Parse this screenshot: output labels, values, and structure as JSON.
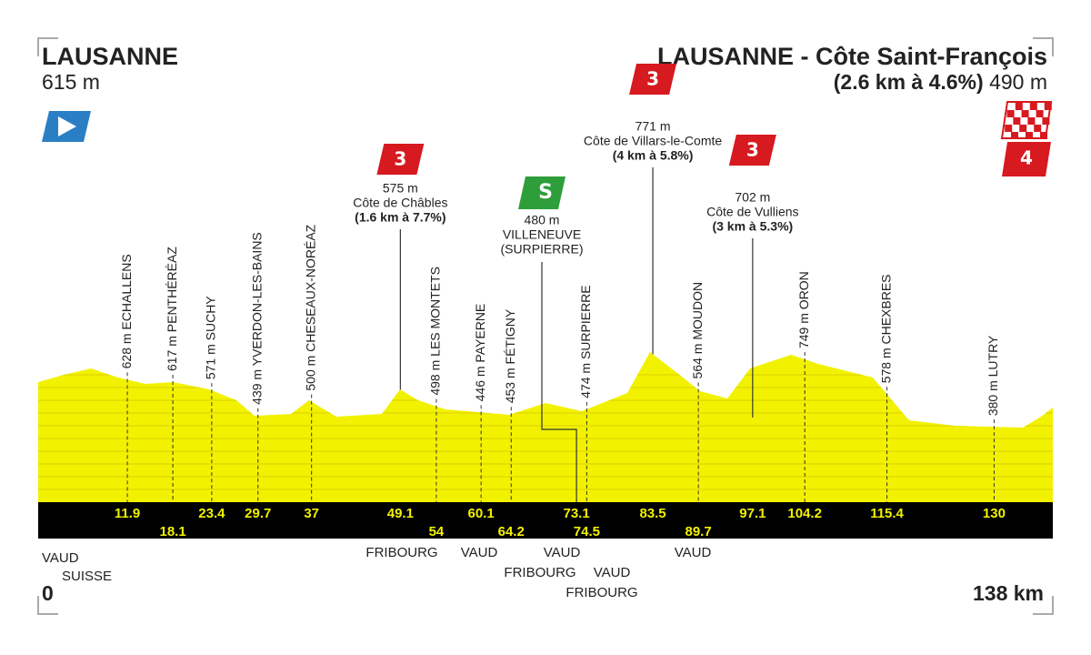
{
  "start": {
    "name": "LAUSANNE",
    "altitude": "615 m",
    "km": 0,
    "regions": [
      "VAUD",
      "SUISSE"
    ]
  },
  "finish": {
    "name": "LAUSANNE - Côte Saint-François",
    "detail": "(2.6 km à 4.6%)",
    "altitude": "490 m",
    "km": 138,
    "unit": "km",
    "category": "4"
  },
  "waypoints": [
    {
      "label": "628 m ECHALLENS",
      "km": 11.9
    },
    {
      "label": "617 m PENTHÉRÉAZ",
      "km": 18.1
    },
    {
      "label": "571 m SUCHY",
      "km": 23.4
    },
    {
      "label": "439 m YVERDON-LES-BAINS",
      "km": 29.7
    },
    {
      "label": "500 m CHESEAUX-NORÉAZ",
      "km": 37
    },
    {
      "label": "498 m LES MONTETS",
      "km": 54
    },
    {
      "label": "446 m PAYERNE",
      "km": 60.1
    },
    {
      "label": "453 m FÉTIGNY",
      "km": 64.2
    },
    {
      "label": "474 m SURPIERRE",
      "km": 74.5
    },
    {
      "label": "564 m MOUDON",
      "km": 89.7
    },
    {
      "label": "749 m ORON",
      "km": 104.2
    },
    {
      "label": "578 m CHEXBRES",
      "km": 115.4
    },
    {
      "label": "380 m LUTRY",
      "km": 130
    }
  ],
  "climbs": [
    {
      "category": "3",
      "altitude": "575 m",
      "name": "Côte de Châbles",
      "detail": "(1.6 km à 7.7%)",
      "km": 49.1
    },
    {
      "category": "3",
      "altitude": "771 m",
      "name": "Côte de Villars-le-Comte",
      "detail": "(4 km à 5.8%)",
      "km": 83.5
    },
    {
      "category": "3",
      "altitude": "702 m",
      "name": "Côte de Vulliens",
      "detail": "(3 km à 5.3%)",
      "km": 97.1
    }
  ],
  "sprint": {
    "badge": "S",
    "altitude": "480 m",
    "name": "VILLENEUVE",
    "detail": "(SURPIERRE)",
    "km": 73.1
  },
  "borders": [
    {
      "upper": "FRIBOURG"
    },
    {
      "upper": "VAUD"
    },
    {
      "upper": "VAUD",
      "lower": "FRIBOURG"
    },
    {
      "upper": "VAUD",
      "lower": "FRIBOURG"
    },
    {
      "upper": "VAUD"
    }
  ]
}
